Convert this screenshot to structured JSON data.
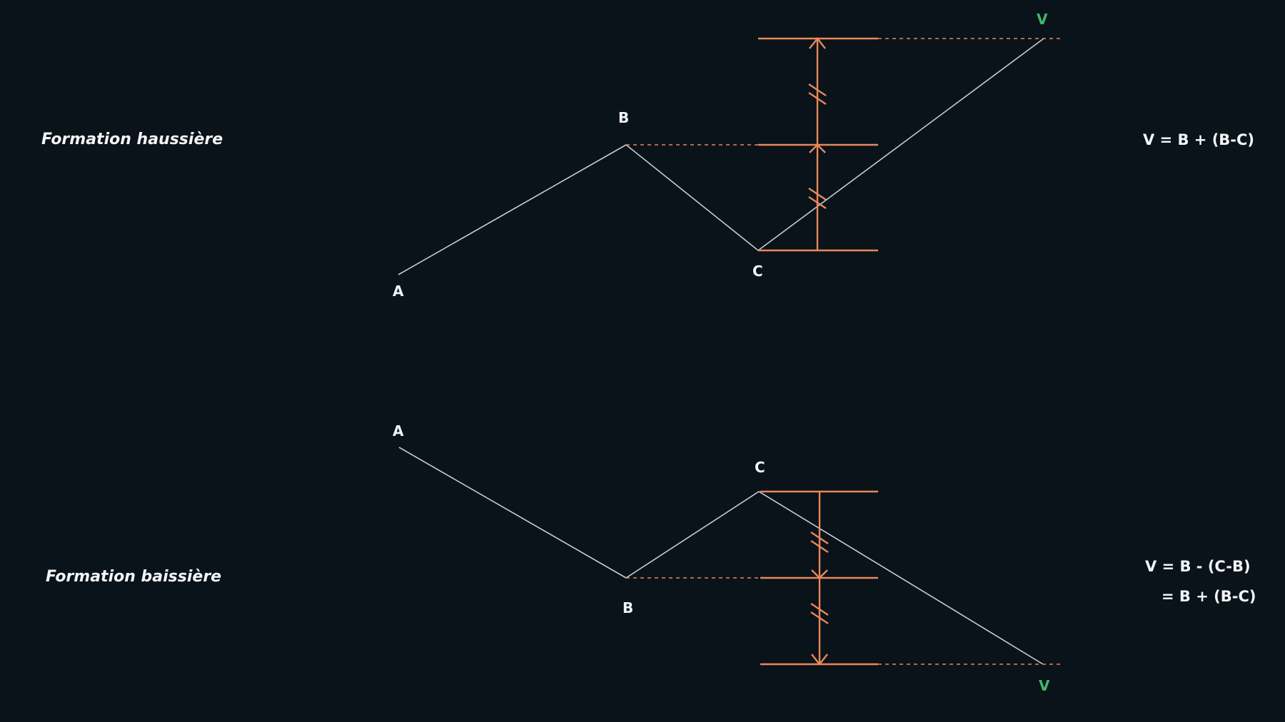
{
  "bullish": {
    "title": "Formation haussière",
    "formula": "V = B + (B-C)",
    "labels": {
      "a": "A",
      "b": "B",
      "c": "C",
      "v": "V"
    }
  },
  "bearish": {
    "title": "Formation baissière",
    "formula_line1": "V = B - (C-B)",
    "formula_line2": "= B + (B-C)",
    "labels": {
      "a": "A",
      "b": "B",
      "c": "C",
      "v": "V"
    }
  },
  "colors": {
    "background": "#0a121a",
    "text": "#f2f4f6",
    "price_line": "#c9ccd1",
    "measure": "#e8885a",
    "target_label": "#3fb96a"
  }
}
